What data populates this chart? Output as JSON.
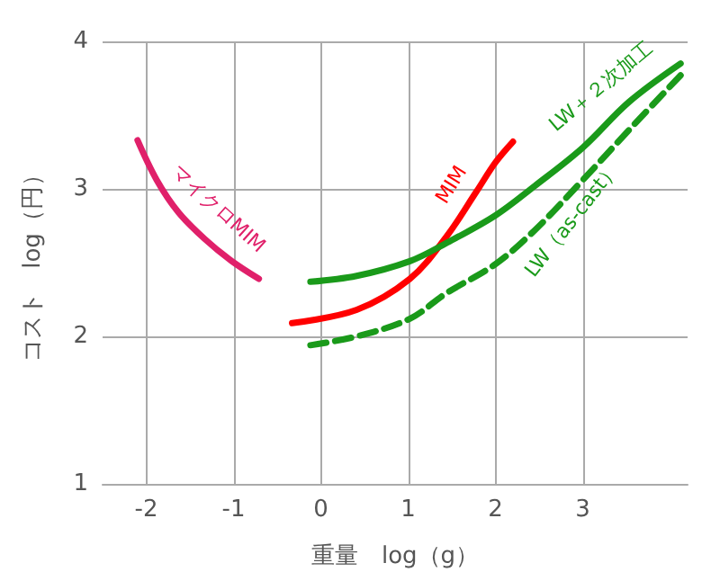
{
  "chart_data": {
    "type": "line",
    "xlabel": "重量　log（g）",
    "ylabel": "コスト　log（円）",
    "xlim": [
      -2.5,
      4.2
    ],
    "ylim": [
      1,
      4
    ],
    "xticks": [
      -2,
      -1,
      0,
      1,
      2,
      3
    ],
    "yticks": [
      1,
      2,
      3,
      4
    ],
    "grid": true,
    "marker": "none",
    "series": [
      {
        "name": "マイクロMIM",
        "color": "#e0206a",
        "x": [
          -2.1,
          -1.88,
          -1.63,
          -1.33,
          -1.02,
          -0.71
        ],
        "values": [
          3.33,
          3.06,
          2.84,
          2.66,
          2.51,
          2.39
        ]
      },
      {
        "name": "MIM",
        "color": "#ff0000",
        "x": [
          -0.33,
          0.41,
          1.02,
          1.43,
          1.78,
          2.0,
          2.2
        ],
        "values": [
          2.09,
          2.18,
          2.39,
          2.67,
          2.98,
          3.18,
          3.32
        ]
      },
      {
        "name": "LW＋２次加工",
        "color": "#1a9a1a",
        "x": [
          -0.12,
          0.41,
          1.02,
          1.43,
          2.0,
          2.45,
          3.0,
          3.53,
          4.12
        ],
        "values": [
          2.37,
          2.41,
          2.51,
          2.63,
          2.82,
          3.02,
          3.28,
          3.59,
          3.85
        ]
      },
      {
        "name": "LW（as-cast）",
        "color": "#1a9a1a",
        "line_style": "dashed",
        "x": [
          -0.12,
          0.41,
          1.02,
          1.43,
          2.0,
          2.45,
          3.0,
          3.53,
          4.12
        ],
        "values": [
          1.94,
          2.0,
          2.12,
          2.29,
          2.49,
          2.72,
          3.06,
          3.4,
          3.77
        ]
      }
    ]
  }
}
